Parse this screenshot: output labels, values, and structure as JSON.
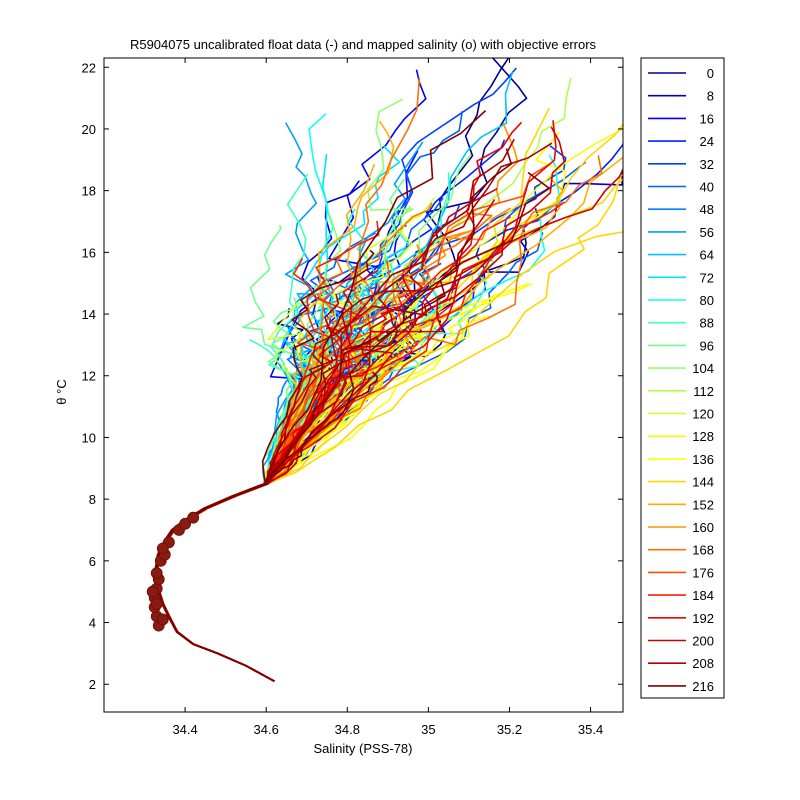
{
  "chart_data": {
    "type": "line",
    "title": "R5904075 uncalibrated float data (-) and mapped salinity (o) with objective errors",
    "xlabel": "Salinity (PSS-78)",
    "ylabel": "θ °C",
    "xlim": [
      34.2,
      35.48
    ],
    "ylim": [
      1.1,
      22.3
    ],
    "x_ticks": [
      34.4,
      34.6,
      34.8,
      35,
      35.2,
      35.4
    ],
    "x_tick_labels": [
      "34.4",
      "34.6",
      "34.8",
      "35",
      "35.2",
      "35.4"
    ],
    "y_ticks": [
      2,
      4,
      6,
      8,
      10,
      12,
      14,
      16,
      18,
      20,
      22
    ],
    "y_tick_labels": [
      "2",
      "4",
      "6",
      "8",
      "10",
      "12",
      "14",
      "16",
      "18",
      "20",
      "22"
    ],
    "grid": false,
    "legend_position": "outside-right",
    "legend_entries": [
      "0",
      "8",
      "16",
      "24",
      "32",
      "40",
      "48",
      "56",
      "64",
      "72",
      "80",
      "88",
      "96",
      "104",
      "112",
      "120",
      "128",
      "136",
      "144",
      "152",
      "160",
      "168",
      "176",
      "184",
      "192",
      "200",
      "208",
      "216"
    ],
    "legend_colors": [
      "#00008f",
      "#0000c8",
      "#0000ff",
      "#0020ff",
      "#0040ff",
      "#0060ff",
      "#0080ff",
      "#00a0ff",
      "#00c0ff",
      "#00e0ff",
      "#10ffef",
      "#40ffbf",
      "#70ff8f",
      "#90ff6f",
      "#b0ff4f",
      "#d0ff2f",
      "#f0ff0f",
      "#ffff00",
      "#ffd700",
      "#ffb000",
      "#ff9000",
      "#ff7000",
      "#ff5000",
      "#ff2000",
      "#f00000",
      "#d00000",
      "#b00000",
      "#800000"
    ],
    "deep_profile": {
      "x": [
        34.62,
        34.55,
        34.48,
        34.42,
        34.38,
        34.36,
        34.345,
        34.335,
        34.33,
        34.33,
        34.335,
        34.35,
        34.37,
        34.4,
        34.45,
        34.52,
        34.6
      ],
      "y": [
        2.1,
        2.6,
        3.0,
        3.3,
        3.7,
        4.2,
        4.6,
        5.0,
        5.4,
        5.8,
        6.2,
        6.6,
        7.0,
        7.3,
        7.7,
        8.1,
        8.5
      ]
    },
    "mapped_points": {
      "x": [
        34.335,
        34.33,
        34.325,
        34.325,
        34.33,
        34.335,
        34.34,
        34.35,
        34.36,
        34.32,
        34.33,
        34.345,
        34.33,
        34.345,
        34.385,
        34.4,
        34.42
      ],
      "y": [
        3.9,
        4.2,
        4.5,
        4.8,
        5.1,
        5.4,
        6.0,
        6.2,
        6.6,
        5.0,
        4.6,
        4.1,
        5.6,
        6.4,
        7.0,
        7.2,
        7.4
      ]
    }
  }
}
